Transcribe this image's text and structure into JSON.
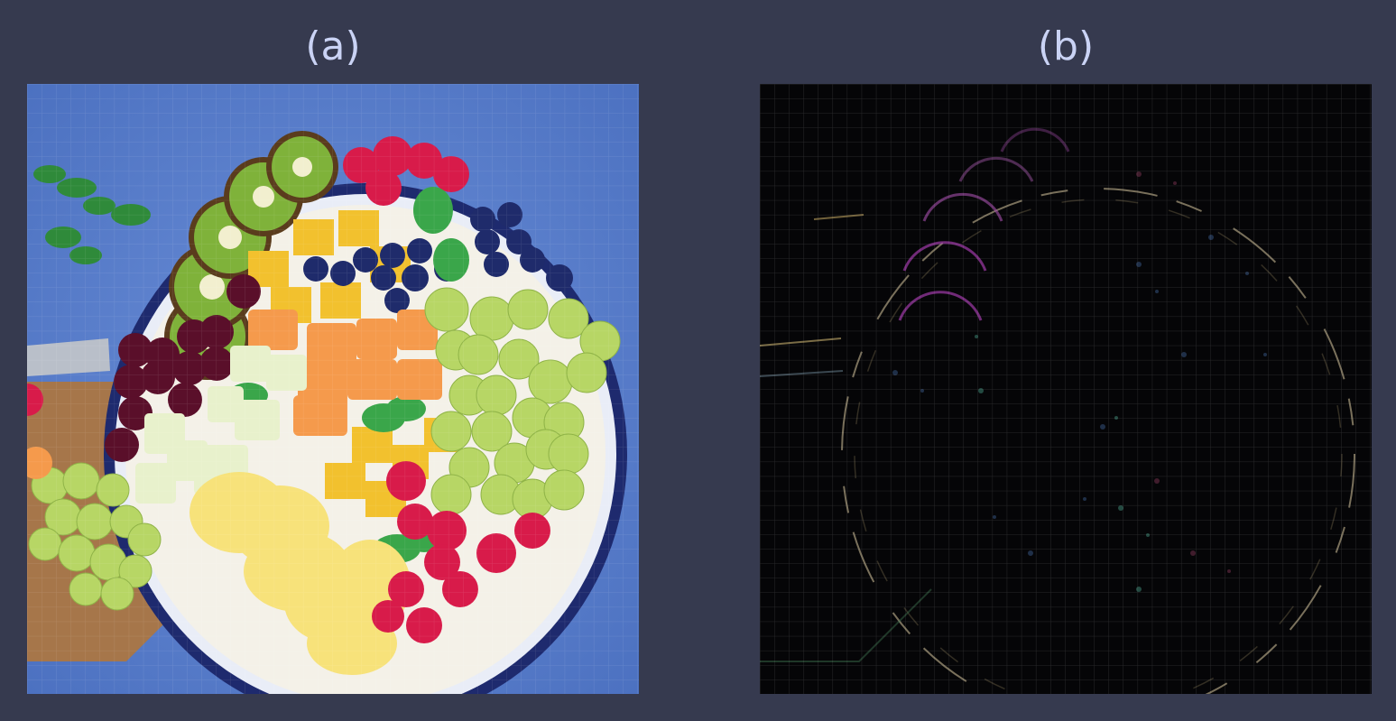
{
  "panels": [
    {
      "label": "(a)"
    },
    {
      "label": "(b)"
    }
  ],
  "colors": {
    "background": "#363a4f",
    "label": "#cad3f5",
    "grid": "#ffffff"
  }
}
